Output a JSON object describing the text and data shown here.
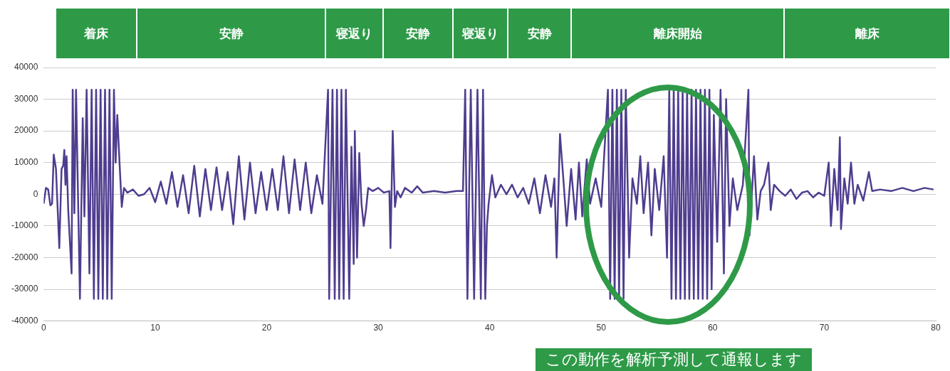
{
  "chart_data": {
    "type": "line",
    "color": "#4f3d8f",
    "x": [
      0,
      0.2,
      0.4,
      0.6,
      0.75,
      0.9,
      1.1,
      1.4,
      1.6,
      1.75,
      1.85,
      1.95,
      2.05,
      2.2,
      2.5,
      2.6,
      2.75,
      2.9,
      3.25,
      3.5,
      3.65,
      3.85,
      4.1,
      4.3,
      4.5,
      4.7,
      4.9,
      5.1,
      5.3,
      5.5,
      5.7,
      5.9,
      6.1,
      6.3,
      6.45,
      6.6,
      6.8,
      7.0,
      7.2,
      7.5,
      8,
      8.5,
      9,
      9.5,
      10,
      10.5,
      11,
      11.5,
      12,
      12.5,
      13,
      13.5,
      14,
      14.5,
      15,
      15.5,
      16,
      16.5,
      17,
      17.5,
      18,
      18.5,
      19,
      19.5,
      20,
      20.5,
      21,
      21.5,
      22,
      22.5,
      23,
      23.5,
      24,
      24.5,
      25,
      25.5,
      25.6,
      25.9,
      26.1,
      26.3,
      26.5,
      26.7,
      26.9,
      27.1,
      27.4,
      27.6,
      27.8,
      27.9,
      28.1,
      28.3,
      28.5,
      28.7,
      28.9,
      29.1,
      29.5,
      30,
      30.5,
      31,
      31.1,
      31.3,
      31.5,
      31.7,
      32,
      32.4,
      33,
      33.5,
      34,
      35,
      36,
      37,
      37.6,
      37.8,
      38,
      38.3,
      38.6,
      38.9,
      39.2,
      39.4,
      39.6,
      39.75,
      39.9,
      40.2,
      40.5,
      41,
      41.5,
      42,
      42.5,
      43,
      43.5,
      44,
      44.5,
      45,
      45.5,
      45.8,
      46.0,
      46.3,
      46.6,
      46.9,
      47.3,
      47.7,
      48,
      48.3,
      48.7,
      49,
      49.5,
      50,
      50.6,
      50.8,
      51.0,
      51.2,
      51.4,
      51.6,
      51.8,
      52,
      52.2,
      52.5,
      52.8,
      53.2,
      53.5,
      53.8,
      54.2,
      54.5,
      54.8,
      55.2,
      55.6,
      55.9,
      56.1,
      56.3,
      56.5,
      56.7,
      56.9,
      57.1,
      57.3,
      57.5,
      57.7,
      57.9,
      58.1,
      58.3,
      58.5,
      58.7,
      58.9,
      59.1,
      59.3,
      59.5,
      59.7,
      59.9,
      60.1,
      60.4,
      60.7,
      61,
      61.2,
      61.5,
      61.8,
      62.2,
      62.7,
      63.2,
      63.3,
      63.7,
      64,
      64.3,
      64.6,
      65,
      65.2,
      65.5,
      66,
      66.5,
      67,
      67.5,
      68,
      68.5,
      69,
      69.5,
      70,
      70.4,
      70.6,
      70.9,
      71.2,
      71.4,
      71.5,
      71.8,
      72.1,
      72.4,
      72.7,
      73,
      73.5,
      74,
      74.3,
      75,
      76,
      77,
      78,
      79,
      79.8
    ],
    "values": [
      -3000,
      2000,
      1500,
      -3500,
      -3000,
      12500,
      8000,
      -17000,
      8000,
      9000,
      14000,
      3000,
      12000,
      -5000,
      -25000,
      33000,
      -6000,
      33000,
      -33000,
      24000,
      -7000,
      33000,
      -25000,
      33000,
      -33000,
      33000,
      -33000,
      33000,
      -33000,
      33000,
      -33000,
      33000,
      -33000,
      33000,
      10000,
      25000,
      10000,
      -4000,
      2000,
      500,
      1500,
      -500,
      0,
      2000,
      -2500,
      4000,
      -3000,
      7000,
      -4000,
      6000,
      -6000,
      9000,
      -7000,
      8000,
      -5000,
      8500,
      -5000,
      7000,
      -9500,
      12000,
      -8000,
      10000,
      -6000,
      7000,
      -5000,
      8000,
      -5000,
      12000,
      -6000,
      11000,
      -5000,
      10000,
      -6000,
      6000,
      -3000,
      33000,
      -33000,
      33000,
      -33000,
      33000,
      -33000,
      33000,
      -33000,
      33000,
      -33000,
      15000,
      -22000,
      20000,
      -20000,
      13000,
      -3000,
      -10000,
      -5000,
      2000,
      1000,
      2000,
      500,
      1000,
      -17000,
      20000,
      -4000,
      1000,
      -1000,
      2000,
      500,
      2500,
      500,
      1000,
      500,
      1000,
      1000,
      33000,
      -33000,
      33000,
      -33000,
      33000,
      -33000,
      33000,
      -33000,
      -10000,
      -3000,
      6000,
      -1000,
      3000,
      0,
      3000,
      -1000,
      2000,
      -3000,
      5000,
      -6000,
      6000,
      -4000,
      5000,
      -20000,
      19000,
      5000,
      -10000,
      8000,
      -8000,
      10000,
      -7000,
      11000,
      -3000,
      5000,
      -4000,
      33000,
      -33000,
      33000,
      -33000,
      33000,
      -33000,
      33000,
      -33000,
      33000,
      -20000,
      5000,
      -3000,
      12000,
      -6000,
      10000,
      -13000,
      8000,
      -5000,
      12000,
      -20000,
      33000,
      -33000,
      33000,
      -33000,
      33000,
      -33000,
      33000,
      -33000,
      33000,
      -33000,
      33000,
      -33000,
      33000,
      -33000,
      33000,
      -33000,
      33000,
      -33000,
      33000,
      -30000,
      25000,
      -15000,
      33000,
      -25000,
      30000,
      -10000,
      5000,
      -5000,
      3000,
      33000,
      -13000,
      12000,
      -8000,
      1000,
      3000,
      10000,
      -5000,
      3000,
      1000,
      -500,
      1500,
      -1500,
      500,
      1000,
      -1000,
      500,
      -500,
      10000,
      -10000,
      8000,
      -5000,
      18000,
      -11000,
      5000,
      -3000,
      10000,
      -3000,
      3000,
      -2000,
      7000,
      1000,
      1500,
      1000,
      2000,
      1000,
      2000,
      1500
    ],
    "xlim": [
      0,
      80
    ],
    "xticks": [
      0,
      10,
      20,
      30,
      40,
      50,
      60,
      70,
      80
    ],
    "ylim": [
      -40000,
      40000
    ],
    "yticks": [
      -40000,
      -30000,
      -20000,
      -10000,
      0,
      10000,
      20000,
      30000,
      40000
    ],
    "grid": "y",
    "legend": false,
    "marker": "none",
    "line_style": "solid",
    "annotations": [
      "着床",
      "安静",
      "寝返り",
      "安静",
      "寝返り",
      "安静",
      "離床開始",
      "離床",
      "この動作を解析予測して通報します"
    ]
  }
}
